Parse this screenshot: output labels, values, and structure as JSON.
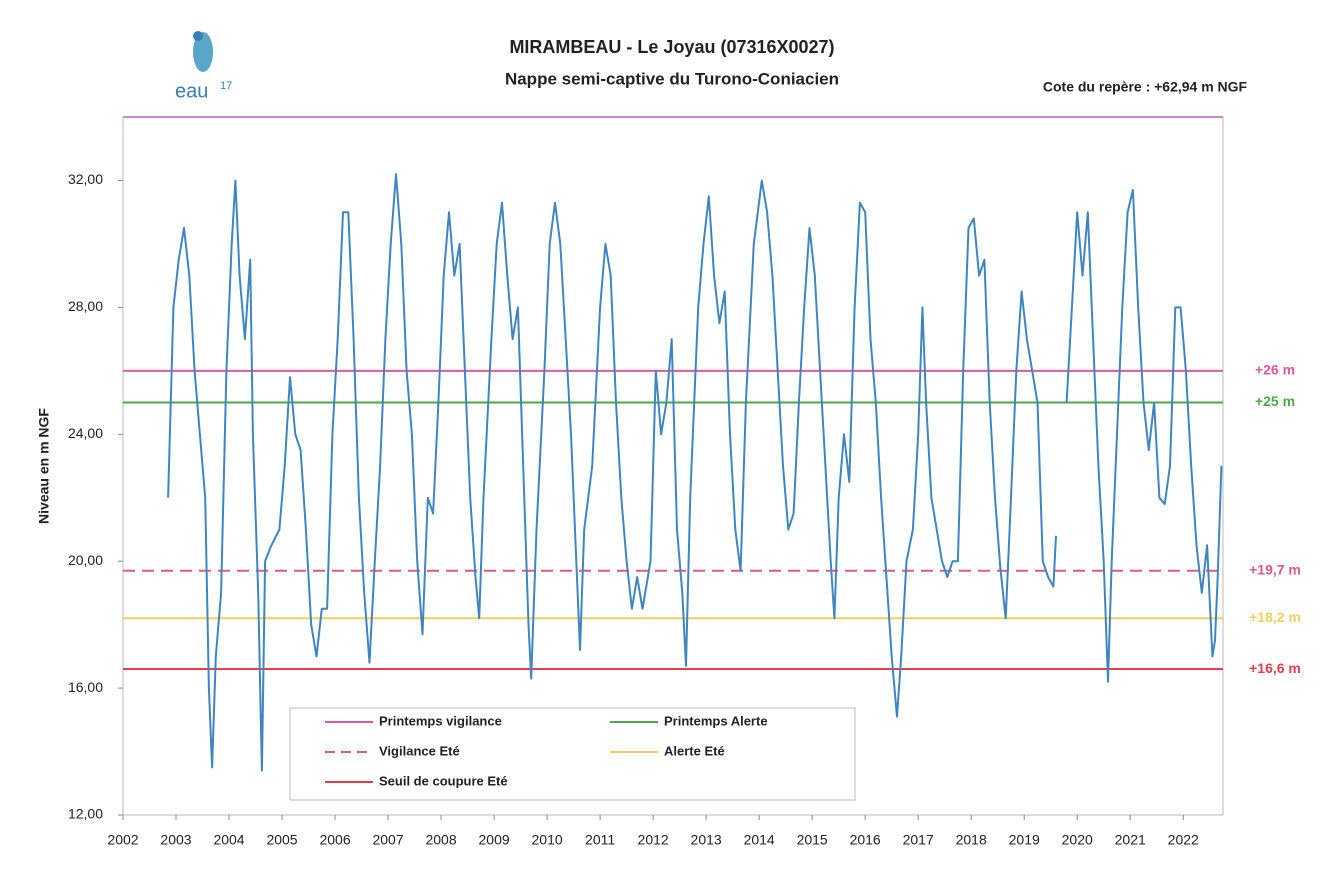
{
  "logo": {
    "text": "eau",
    "sup": "17"
  },
  "chart_data": {
    "type": "line",
    "title": "MIRAMBEAU - Le Joyau (07316X0027)",
    "subtitle": "Nappe semi-captive du Turono-Coniacien",
    "annotation": "Cote du repère : +62,94 m NGF",
    "y_label": "Niveau en m NGF",
    "xlim": [
      2002,
      2022.75
    ],
    "xticks": [
      2002,
      2003,
      2004,
      2005,
      2006,
      2007,
      2008,
      2009,
      2010,
      2011,
      2012,
      2013,
      2014,
      2015,
      2016,
      2017,
      2018,
      2019,
      2020,
      2021,
      2022
    ],
    "ylim": [
      12,
      34
    ],
    "yticks": [
      {
        "value": 12,
        "label": "12,00"
      },
      {
        "value": 16,
        "label": "16,00"
      },
      {
        "value": 20,
        "label": "20,00"
      },
      {
        "value": 24,
        "label": "24,00"
      },
      {
        "value": 28,
        "label": "28,00"
      },
      {
        "value": 32,
        "label": "32,00"
      }
    ],
    "x": [
      2002.85,
      2002.95,
      2003.05,
      2003.15,
      2003.25,
      2003.35,
      2003.45,
      2003.55,
      2003.62,
      2003.68,
      2003.75,
      2003.85,
      2003.95,
      2004.05,
      2004.12,
      2004.2,
      2004.3,
      2004.4,
      2004.45,
      2004.55,
      2004.62,
      2004.68,
      2004.8,
      2004.95,
      2005.05,
      2005.15,
      2005.25,
      2005.35,
      2005.45,
      2005.55,
      2005.65,
      2005.75,
      2005.85,
      2005.95,
      2006.05,
      2006.15,
      2006.25,
      2006.35,
      2006.45,
      2006.55,
      2006.65,
      2006.75,
      2006.85,
      2006.95,
      2007.05,
      2007.15,
      2007.25,
      2007.35,
      2007.45,
      2007.55,
      2007.65,
      2007.75,
      2007.85,
      2007.95,
      2008.05,
      2008.15,
      2008.25,
      2008.35,
      2008.45,
      2008.55,
      2008.65,
      2008.72,
      2008.8,
      2008.95,
      2009.05,
      2009.15,
      2009.25,
      2009.35,
      2009.45,
      2009.55,
      2009.65,
      2009.7,
      2009.8,
      2009.95,
      2010.05,
      2010.15,
      2010.25,
      2010.35,
      2010.45,
      2010.55,
      2010.62,
      2010.7,
      2010.85,
      2011.0,
      2011.1,
      2011.2,
      2011.3,
      2011.4,
      2011.5,
      2011.6,
      2011.7,
      2011.8,
      2011.95,
      2012.05,
      2012.15,
      2012.25,
      2012.35,
      2012.45,
      2012.55,
      2012.62,
      2012.7,
      2012.85,
      2012.95,
      2013.05,
      2013.15,
      2013.25,
      2013.35,
      2013.45,
      2013.55,
      2013.65,
      2013.75,
      2013.9,
      2014.05,
      2014.15,
      2014.25,
      2014.35,
      2014.45,
      2014.55,
      2014.65,
      2014.75,
      2014.85,
      2014.95,
      2015.05,
      2015.15,
      2015.25,
      2015.35,
      2015.42,
      2015.5,
      2015.6,
      2015.7,
      2015.8,
      2015.9,
      2016.0,
      2016.1,
      2016.2,
      2016.3,
      2016.4,
      2016.5,
      2016.6,
      2016.68,
      2016.78,
      2016.9,
      2017.0,
      2017.08,
      2017.15,
      2017.25,
      2017.35,
      2017.45,
      2017.55,
      2017.65,
      2017.75,
      2017.85,
      2017.95,
      2018.05,
      2018.15,
      2018.25,
      2018.35,
      2018.45,
      2018.55,
      2018.65,
      2018.75,
      2018.85,
      2018.95,
      2019.05,
      2019.15,
      2019.25,
      2019.35,
      2019.45,
      2019.55,
      2019.6,
      2019.7,
      2019.8,
      2019.9,
      2020.0,
      2020.1,
      2020.2,
      2020.3,
      2020.4,
      2020.5,
      2020.58,
      2020.65,
      2020.75,
      2020.85,
      2020.95,
      2021.05,
      2021.15,
      2021.25,
      2021.35,
      2021.45,
      2021.55,
      2021.65,
      2021.75,
      2021.85,
      2021.95,
      2022.05,
      2022.15,
      2022.25,
      2022.35,
      2022.45,
      2022.55,
      2022.6,
      2022.65,
      2022.72
    ],
    "series": [
      {
        "color": "#3f86c0",
        "values": [
          22,
          28,
          29.5,
          30.5,
          29,
          26,
          24,
          22,
          16,
          13.5,
          17,
          19,
          26,
          30,
          32,
          29,
          27,
          29.5,
          24,
          19,
          13.4,
          20,
          20.5,
          21,
          23,
          25.8,
          24,
          23.5,
          21,
          18,
          17,
          18.5,
          18.5,
          24,
          27,
          31,
          31,
          27,
          22,
          19,
          16.8,
          20,
          23,
          27,
          30,
          32.2,
          30,
          26,
          24,
          20,
          17.7,
          22,
          21.5,
          25,
          29,
          31,
          29,
          30,
          26,
          22,
          19.5,
          18.2,
          22,
          27,
          30,
          31.3,
          29,
          27,
          28,
          23,
          18,
          16.3,
          21,
          26,
          30,
          31.3,
          30,
          27,
          24,
          20,
          17.2,
          21,
          23,
          28,
          30,
          29,
          25,
          22,
          20,
          18.5,
          19.5,
          18.5,
          20,
          26,
          24,
          25,
          27,
          21,
          19,
          16.7,
          22,
          28,
          30,
          31.5,
          29,
          27.5,
          28.5,
          24,
          21,
          19.7,
          25,
          30,
          32,
          31,
          29,
          26,
          23,
          21,
          21.5,
          25,
          28,
          30.5,
          29,
          26,
          23,
          20,
          18.2,
          22,
          24,
          22.5,
          28,
          31.3,
          31,
          27,
          25,
          22,
          19.5,
          17,
          15.1,
          17,
          20,
          21,
          24,
          28,
          25,
          22,
          21,
          20,
          19.5,
          20,
          20,
          26,
          30.5,
          30.8,
          29,
          29.5,
          25,
          22,
          19.8,
          18.2,
          22,
          26,
          28.5,
          27,
          26,
          25,
          20,
          19.5,
          19.2,
          20.8,
          null,
          25,
          28,
          31,
          29,
          31,
          27,
          23,
          20,
          16.2,
          20,
          24,
          28,
          31,
          31.7,
          28,
          25,
          23.5,
          25,
          22,
          21.8,
          23,
          28,
          28,
          26,
          23,
          20.5,
          19,
          20.5,
          17,
          17.5,
          19.5,
          23
        ]
      }
    ],
    "thresholds": [
      {
        "name": "Printemps vigilance",
        "value": 26,
        "color": "#e0589a",
        "dashed": false,
        "label": "+26 m"
      },
      {
        "name": "Printemps Alerte",
        "value": 25,
        "color": "#4fa64a",
        "dashed": false,
        "label": "+25 m"
      },
      {
        "name": "Vigilance Eté",
        "value": 19.7,
        "color": "#e0588a",
        "dashed": true,
        "label": "+19,7 m"
      },
      {
        "name": "Alerte Eté",
        "value": 18.2,
        "color": "#f0d060",
        "dashed": false,
        "label": "+18,2 m"
      },
      {
        "name": "Seuil de coupure Eté",
        "value": 16.6,
        "color": "#e0404e",
        "dashed": false,
        "label": "+16,6 m"
      }
    ]
  }
}
